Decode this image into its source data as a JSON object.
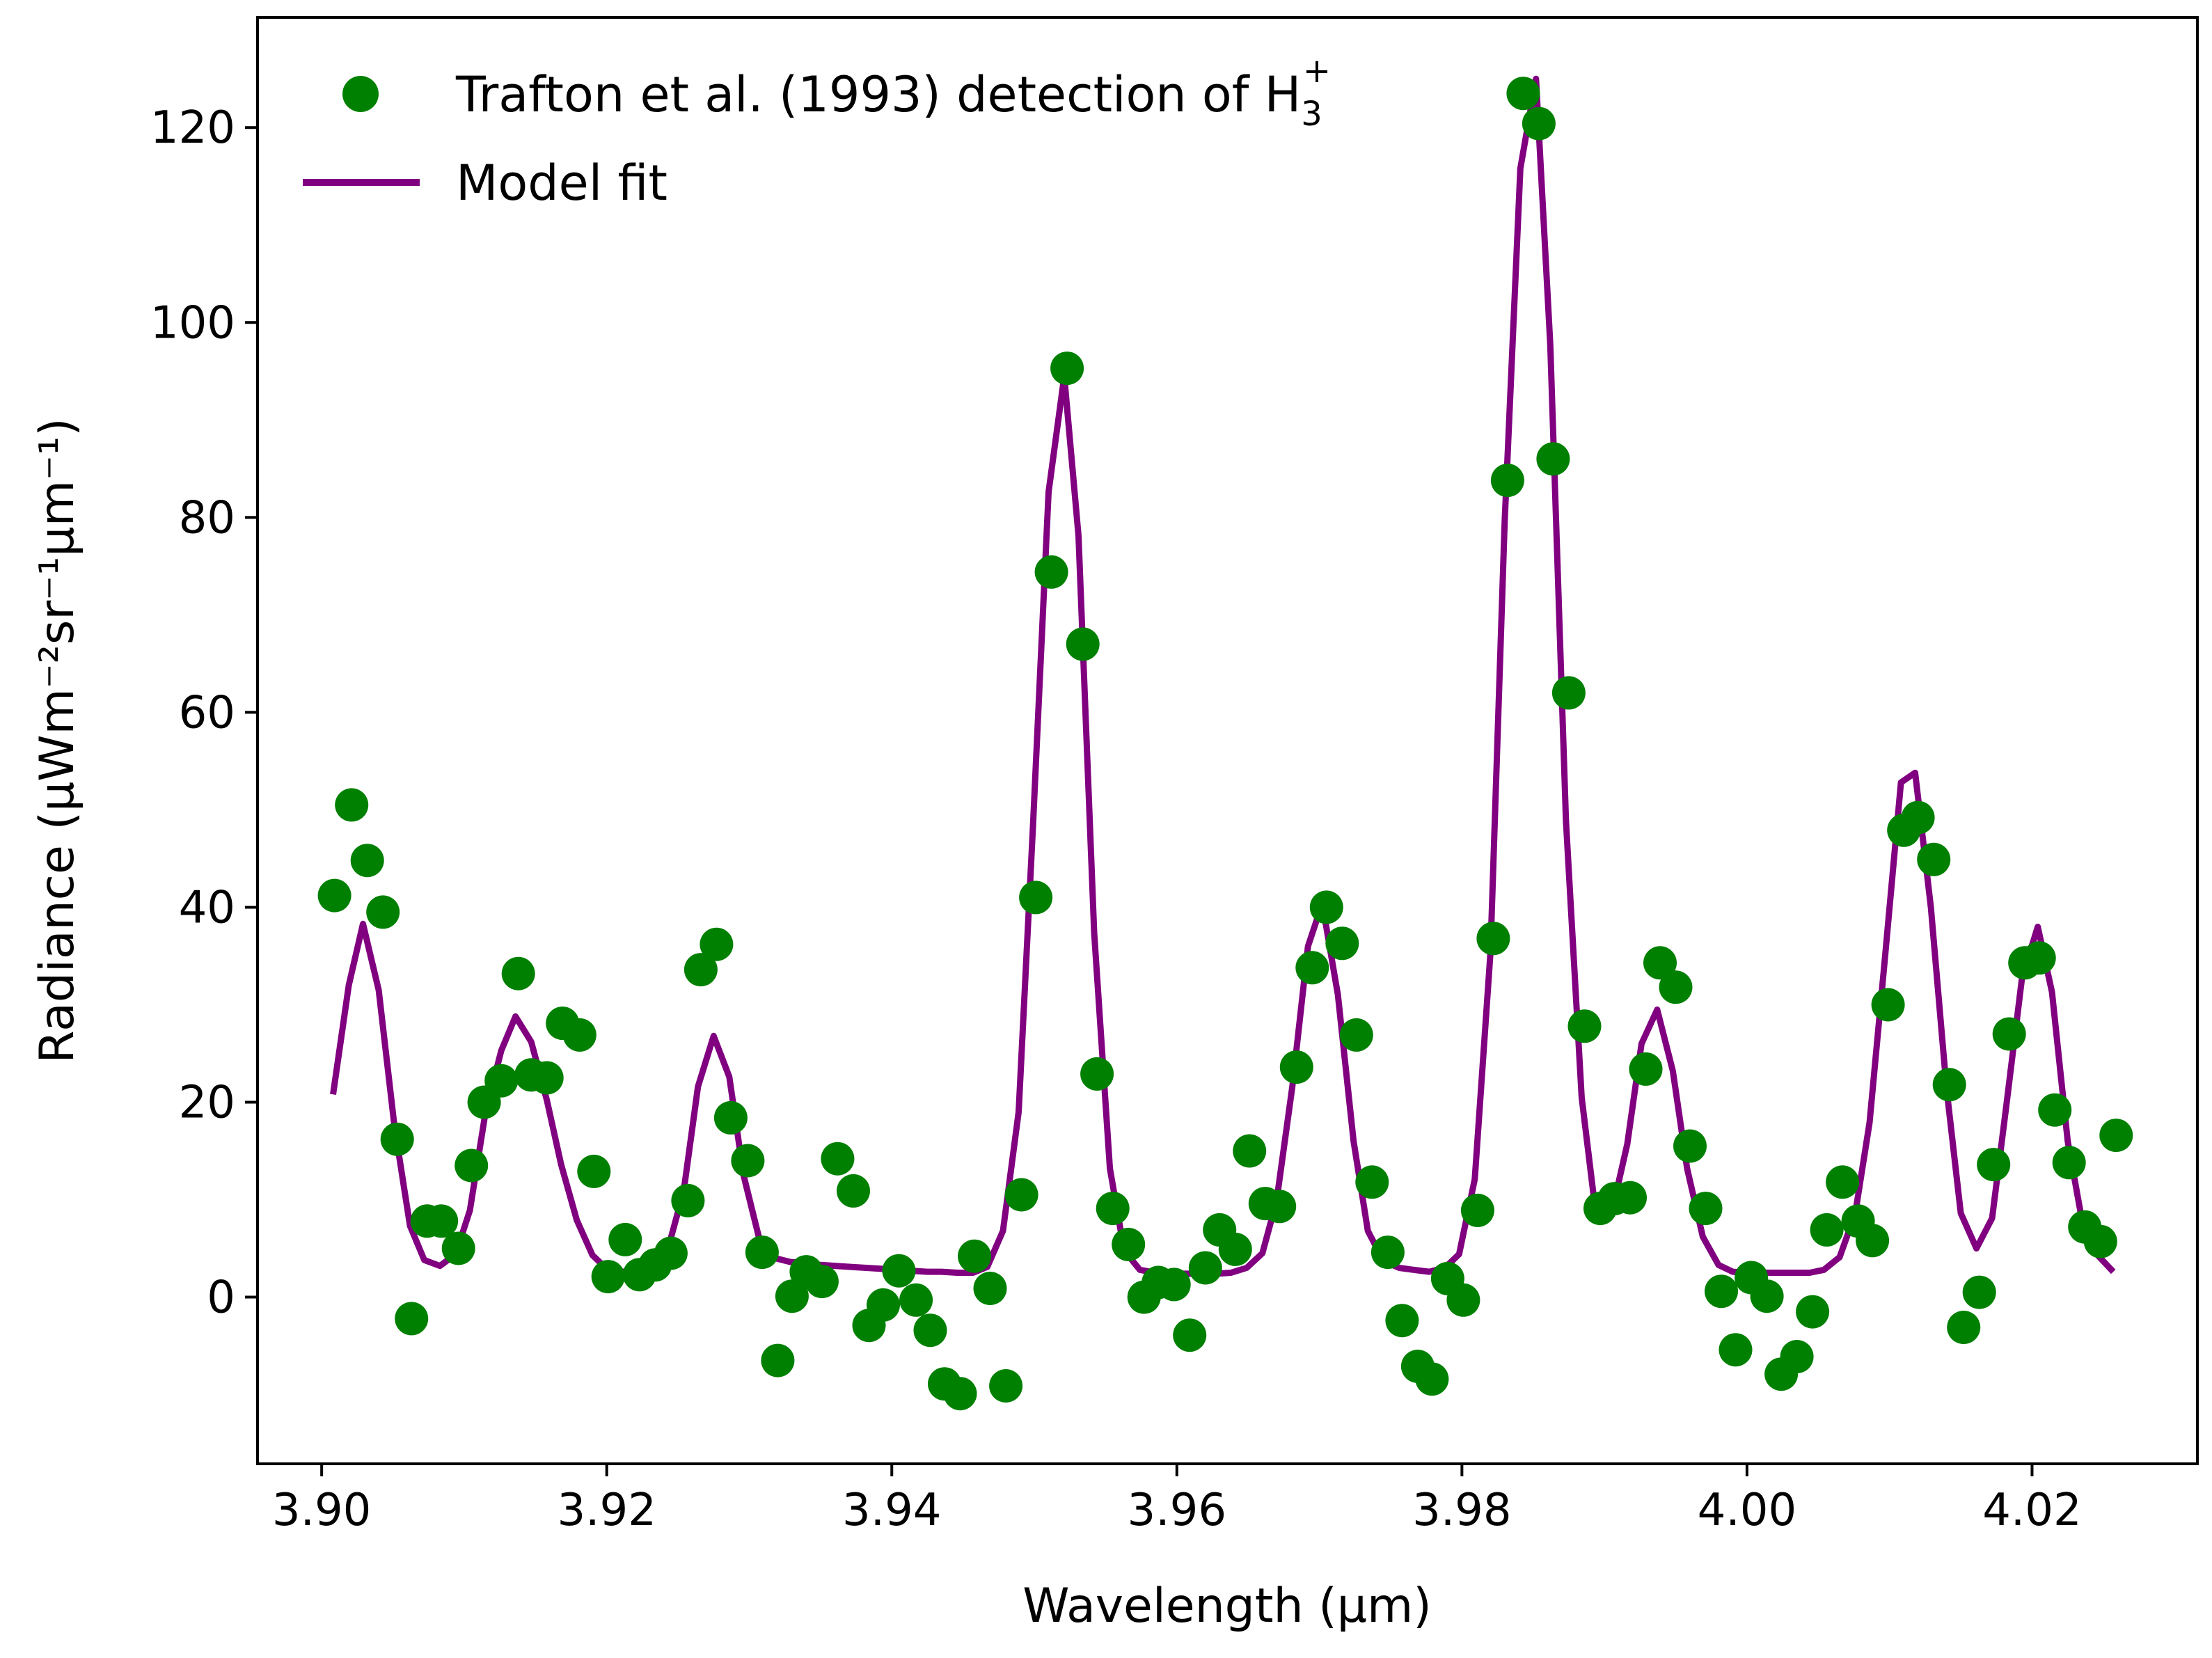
{
  "chart_data": {
    "type": "scatter",
    "xlabel": "Wavelength (μm)",
    "ylabel": "Radiance (μWm⁻²sr⁻¹μm⁻¹)",
    "xlim": [
      3.8955,
      4.0316
    ],
    "ylim": [
      -17.1,
      131.3
    ],
    "xticks": [
      3.9,
      3.92,
      3.94,
      3.96,
      3.98,
      4.0,
      4.02
    ],
    "xtick_labels": [
      "3.90",
      "3.92",
      "3.94",
      "3.96",
      "3.98",
      "4.00",
      "4.02"
    ],
    "yticks": [
      0,
      20,
      40,
      60,
      80,
      100,
      120
    ],
    "ytick_labels": [
      "0",
      "20",
      "40",
      "60",
      "80",
      "100",
      "120"
    ],
    "legend_position": "upper-left",
    "series": [
      {
        "name": "Trafton et al. (1993) detection of H3+",
        "legend_text": "Trafton et al. (1993) detection of H",
        "legend_sub": "3",
        "legend_sup": "+",
        "kind": "scatter",
        "color": "#008000",
        "points": [
          [
            3.9009,
            41.2
          ],
          [
            3.9021,
            50.5
          ],
          [
            3.9032,
            44.8
          ],
          [
            3.9043,
            39.5
          ],
          [
            3.9053,
            16.2
          ],
          [
            3.9063,
            -2.2
          ],
          [
            3.9074,
            7.8
          ],
          [
            3.9084,
            7.8
          ],
          [
            3.9096,
            5.0
          ],
          [
            3.9105,
            13.5
          ],
          [
            3.9114,
            20.0
          ],
          [
            3.9126,
            22.2
          ],
          [
            3.9138,
            33.2
          ],
          [
            3.9147,
            22.8
          ],
          [
            3.9158,
            22.5
          ],
          [
            3.9169,
            28.1
          ],
          [
            3.9181,
            26.9
          ],
          [
            3.9191,
            12.9
          ],
          [
            3.9201,
            2.1
          ],
          [
            3.9213,
            5.9
          ],
          [
            3.9223,
            2.3
          ],
          [
            3.9234,
            3.3
          ],
          [
            3.9245,
            4.5
          ],
          [
            3.9257,
            9.9
          ],
          [
            3.9266,
            33.6
          ],
          [
            3.9277,
            36.2
          ],
          [
            3.9287,
            18.4
          ],
          [
            3.9299,
            14.0
          ],
          [
            3.9309,
            4.6
          ],
          [
            3.932,
            -6.5
          ],
          [
            3.933,
            0.1
          ],
          [
            3.934,
            2.6
          ],
          [
            3.9351,
            1.6
          ],
          [
            3.9362,
            14.2
          ],
          [
            3.9373,
            10.9
          ],
          [
            3.9384,
            -2.9
          ],
          [
            3.9394,
            -0.8
          ],
          [
            3.9405,
            2.7
          ],
          [
            3.9417,
            -0.3
          ],
          [
            3.9427,
            -3.4
          ],
          [
            3.9437,
            -8.9
          ],
          [
            3.9448,
            -9.9
          ],
          [
            3.9458,
            4.2
          ],
          [
            3.9469,
            0.9
          ],
          [
            3.948,
            -9.1
          ],
          [
            3.9491,
            10.5
          ],
          [
            3.9501,
            41.0
          ],
          [
            3.9512,
            74.4
          ],
          [
            3.9523,
            95.3
          ],
          [
            3.9534,
            67.0
          ],
          [
            3.9544,
            22.9
          ],
          [
            3.9555,
            9.1
          ],
          [
            3.9566,
            5.4
          ],
          [
            3.9577,
            0.0
          ],
          [
            3.9587,
            1.5
          ],
          [
            3.9598,
            1.3
          ],
          [
            3.9609,
            -3.9
          ],
          [
            3.962,
            3.0
          ],
          [
            3.963,
            6.9
          ],
          [
            3.9641,
            4.9
          ],
          [
            3.9651,
            15.0
          ],
          [
            3.9662,
            9.6
          ],
          [
            3.9672,
            9.3
          ],
          [
            3.9684,
            23.6
          ],
          [
            3.9695,
            33.8
          ],
          [
            3.9705,
            40.0
          ],
          [
            3.9716,
            36.3
          ],
          [
            3.9726,
            26.9
          ],
          [
            3.9737,
            11.8
          ],
          [
            3.9748,
            4.6
          ],
          [
            3.9758,
            -2.4
          ],
          [
            3.9769,
            -7.1
          ],
          [
            3.9779,
            -8.4
          ],
          [
            3.979,
            1.9
          ],
          [
            3.9801,
            -0.3
          ],
          [
            3.9811,
            8.9
          ],
          [
            3.9822,
            36.8
          ],
          [
            3.9832,
            83.8
          ],
          [
            3.9843,
            123.5
          ],
          [
            3.9854,
            120.4
          ],
          [
            3.9864,
            86.0
          ],
          [
            3.9875,
            62.0
          ],
          [
            3.9886,
            27.8
          ],
          [
            3.9897,
            9.1
          ],
          [
            3.9907,
            10.1
          ],
          [
            3.9918,
            10.2
          ],
          [
            3.9929,
            23.4
          ],
          [
            3.9939,
            34.3
          ],
          [
            3.995,
            31.8
          ],
          [
            3.996,
            15.5
          ],
          [
            3.9971,
            9.1
          ],
          [
            3.9982,
            0.6
          ],
          [
            3.9992,
            -5.4
          ],
          [
            4.0003,
            2.0
          ],
          [
            4.0014,
            0.1
          ],
          [
            4.0024,
            -7.9
          ],
          [
            4.0035,
            -6.1
          ],
          [
            4.0046,
            -1.5
          ],
          [
            4.0056,
            6.9
          ],
          [
            4.0067,
            11.8
          ],
          [
            4.0078,
            7.8
          ],
          [
            4.0088,
            5.8
          ],
          [
            4.0099,
            30.0
          ],
          [
            4.011,
            47.9
          ],
          [
            4.012,
            49.2
          ],
          [
            4.0131,
            44.9
          ],
          [
            4.0142,
            21.8
          ],
          [
            4.0152,
            -3.1
          ],
          [
            4.0163,
            0.5
          ],
          [
            4.0173,
            13.6
          ],
          [
            4.0184,
            27.0
          ],
          [
            4.0195,
            34.3
          ],
          [
            4.0205,
            34.8
          ],
          [
            4.0216,
            19.2
          ],
          [
            4.0226,
            13.8
          ],
          [
            4.0237,
            7.2
          ],
          [
            4.0248,
            5.7
          ],
          [
            4.0259,
            16.6
          ]
        ]
      },
      {
        "name": "Model fit",
        "kind": "line",
        "color": "#800080",
        "points": [
          [
            3.9008,
            20.8
          ],
          [
            3.9019,
            32.0
          ],
          [
            3.9029,
            38.3
          ],
          [
            3.904,
            31.5
          ],
          [
            3.9051,
            17.6
          ],
          [
            3.9062,
            7.3
          ],
          [
            3.9072,
            3.8
          ],
          [
            3.9083,
            3.2
          ],
          [
            3.9094,
            4.4
          ],
          [
            3.9104,
            8.9
          ],
          [
            3.9115,
            19.0
          ],
          [
            3.9126,
            25.3
          ],
          [
            3.9136,
            28.8
          ],
          [
            3.9147,
            26.2
          ],
          [
            3.9158,
            20.2
          ],
          [
            3.9168,
            13.6
          ],
          [
            3.9179,
            7.9
          ],
          [
            3.919,
            4.3
          ],
          [
            3.92,
            2.9
          ],
          [
            3.9211,
            2.6
          ],
          [
            3.9222,
            2.7
          ],
          [
            3.9232,
            3.1
          ],
          [
            3.9243,
            5.0
          ],
          [
            3.9254,
            10.9
          ],
          [
            3.9264,
            21.6
          ],
          [
            3.9275,
            26.8
          ],
          [
            3.9286,
            22.6
          ],
          [
            3.9296,
            12.5
          ],
          [
            3.9307,
            6.0
          ],
          [
            3.9318,
            4.0
          ],
          [
            3.9329,
            3.6
          ],
          [
            3.9339,
            3.5
          ],
          [
            3.935,
            3.3
          ],
          [
            3.9361,
            3.2
          ],
          [
            3.9371,
            3.1
          ],
          [
            3.9382,
            3.0
          ],
          [
            3.9393,
            2.9
          ],
          [
            3.9403,
            2.8
          ],
          [
            3.9414,
            2.7
          ],
          [
            3.9425,
            2.6
          ],
          [
            3.9435,
            2.6
          ],
          [
            3.9446,
            2.5
          ],
          [
            3.9457,
            2.5
          ],
          [
            3.9467,
            3.1
          ],
          [
            3.9478,
            6.8
          ],
          [
            3.9489,
            19.0
          ],
          [
            3.9499,
            48.2
          ],
          [
            3.951,
            82.6
          ],
          [
            3.9521,
            94.5
          ],
          [
            3.9531,
            78.1
          ],
          [
            3.9542,
            37.4
          ],
          [
            3.9553,
            13.2
          ],
          [
            3.9563,
            4.8
          ],
          [
            3.9574,
            2.8
          ],
          [
            3.9585,
            2.5
          ],
          [
            3.9595,
            2.4
          ],
          [
            3.9606,
            2.4
          ],
          [
            3.9617,
            2.4
          ],
          [
            3.9628,
            2.4
          ],
          [
            3.9638,
            2.5
          ],
          [
            3.9649,
            3.0
          ],
          [
            3.966,
            4.5
          ],
          [
            3.967,
            9.9
          ],
          [
            3.9681,
            21.6
          ],
          [
            3.9692,
            36.0
          ],
          [
            3.9702,
            40.4
          ],
          [
            3.9713,
            31.0
          ],
          [
            3.9724,
            16.0
          ],
          [
            3.9734,
            6.8
          ],
          [
            3.9745,
            3.7
          ],
          [
            3.9756,
            3.0
          ],
          [
            3.9766,
            2.8
          ],
          [
            3.9777,
            2.6
          ],
          [
            3.9788,
            3.0
          ],
          [
            3.9798,
            4.4
          ],
          [
            3.9809,
            12.1
          ],
          [
            3.982,
            35.3
          ],
          [
            3.983,
            79.6
          ],
          [
            3.9841,
            115.8
          ],
          [
            3.9852,
            125.0
          ],
          [
            3.9862,
            97.7
          ],
          [
            3.9873,
            48.9
          ],
          [
            3.9884,
            20.5
          ],
          [
            3.9894,
            8.5
          ],
          [
            3.9905,
            8.6
          ],
          [
            3.9916,
            15.7
          ],
          [
            3.9926,
            26.0
          ],
          [
            3.9937,
            29.5
          ],
          [
            3.9948,
            23.2
          ],
          [
            3.9958,
            13.2
          ],
          [
            3.9969,
            6.2
          ],
          [
            3.998,
            3.3
          ],
          [
            3.999,
            2.6
          ],
          [
            4.0001,
            2.5
          ],
          [
            4.0012,
            2.5
          ],
          [
            4.0022,
            2.5
          ],
          [
            4.0033,
            2.5
          ],
          [
            4.0044,
            2.5
          ],
          [
            4.0054,
            2.8
          ],
          [
            4.0065,
            4.1
          ],
          [
            4.0076,
            8.6
          ],
          [
            4.0086,
            17.9
          ],
          [
            4.0097,
            35.1
          ],
          [
            4.0108,
            52.8
          ],
          [
            4.0118,
            53.8
          ],
          [
            4.0129,
            40.0
          ],
          [
            4.014,
            21.4
          ],
          [
            4.015,
            8.6
          ],
          [
            4.0161,
            5.0
          ],
          [
            4.0172,
            8.1
          ],
          [
            4.0182,
            19.7
          ],
          [
            4.0193,
            32.8
          ],
          [
            4.0204,
            38.0
          ],
          [
            4.0214,
            31.3
          ],
          [
            4.0225,
            16.0
          ],
          [
            4.0236,
            7.1
          ],
          [
            4.0246,
            4.3
          ],
          [
            4.0257,
            2.6
          ]
        ]
      }
    ]
  }
}
